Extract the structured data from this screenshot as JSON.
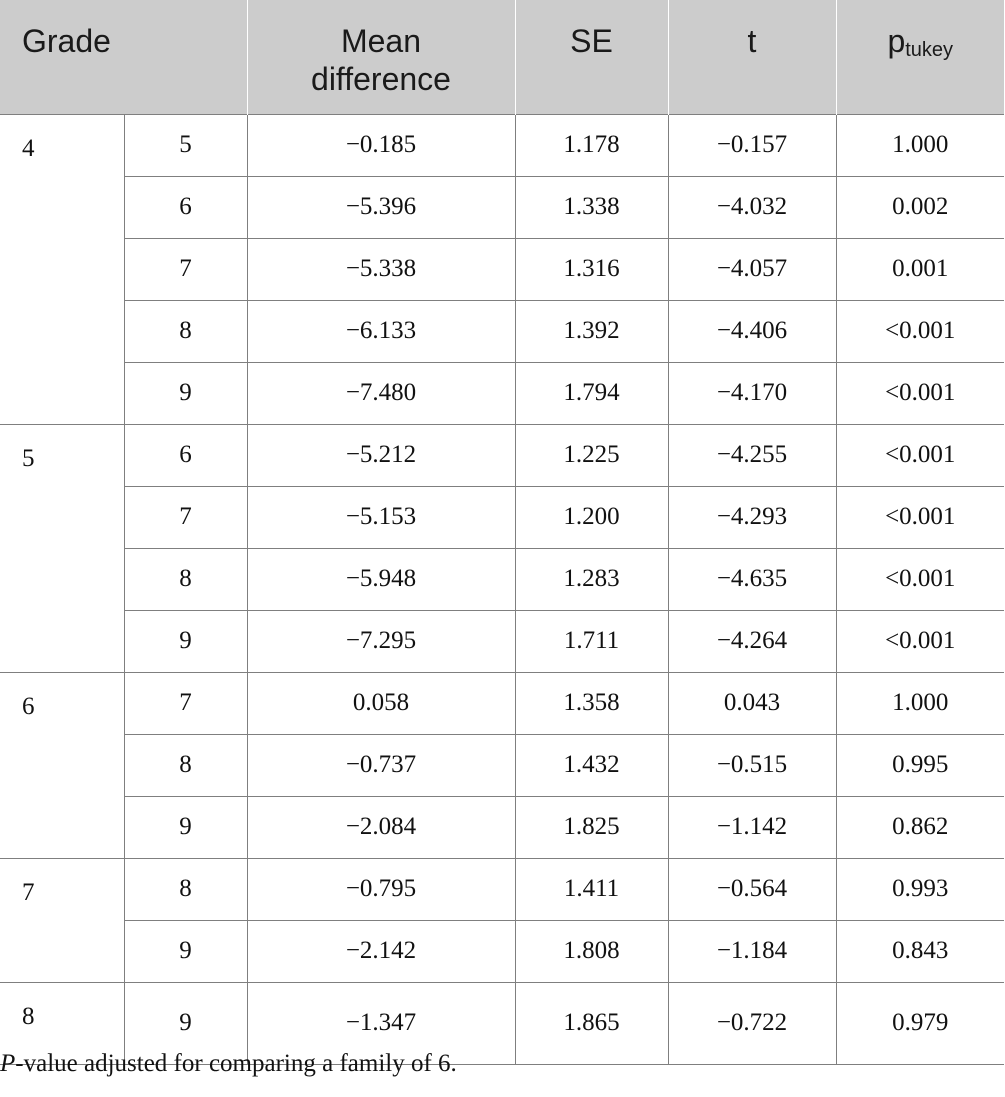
{
  "header": {
    "grade": "Grade",
    "mean_difference_line1": "Mean",
    "mean_difference_line2": "difference",
    "se": "SE",
    "t": "t",
    "p_main": "p",
    "p_sub": "tukey"
  },
  "groups": [
    {
      "grade": "4",
      "rows": [
        {
          "cmp": "5",
          "md": "−0.185",
          "se": "1.178",
          "t": "−0.157",
          "p": "1.000"
        },
        {
          "cmp": "6",
          "md": "−5.396",
          "se": "1.338",
          "t": "−4.032",
          "p": "0.002"
        },
        {
          "cmp": "7",
          "md": "−5.338",
          "se": "1.316",
          "t": "−4.057",
          "p": "0.001"
        },
        {
          "cmp": "8",
          "md": "−6.133",
          "se": "1.392",
          "t": "−4.406",
          "p": "<0.001"
        },
        {
          "cmp": "9",
          "md": "−7.480",
          "se": "1.794",
          "t": "−4.170",
          "p": "<0.001"
        }
      ]
    },
    {
      "grade": "5",
      "rows": [
        {
          "cmp": "6",
          "md": "−5.212",
          "se": "1.225",
          "t": "−4.255",
          "p": "<0.001"
        },
        {
          "cmp": "7",
          "md": "−5.153",
          "se": "1.200",
          "t": "−4.293",
          "p": "<0.001"
        },
        {
          "cmp": "8",
          "md": "−5.948",
          "se": "1.283",
          "t": "−4.635",
          "p": "<0.001"
        },
        {
          "cmp": "9",
          "md": "−7.295",
          "se": "1.711",
          "t": "−4.264",
          "p": "<0.001"
        }
      ]
    },
    {
      "grade": "6",
      "rows": [
        {
          "cmp": "7",
          "md": "0.058",
          "se": "1.358",
          "t": "0.043",
          "p": "1.000"
        },
        {
          "cmp": "8",
          "md": "−0.737",
          "se": "1.432",
          "t": "−0.515",
          "p": "0.995"
        },
        {
          "cmp": "9",
          "md": "−2.084",
          "se": "1.825",
          "t": "−1.142",
          "p": "0.862"
        }
      ]
    },
    {
      "grade": "7",
      "rows": [
        {
          "cmp": "8",
          "md": "−0.795",
          "se": "1.411",
          "t": "−0.564",
          "p": "0.993"
        },
        {
          "cmp": "9",
          "md": "−2.142",
          "se": "1.808",
          "t": "−1.184",
          "p": "0.843"
        }
      ]
    },
    {
      "grade": "8",
      "rows": [
        {
          "cmp": "9",
          "md": "−1.347",
          "se": "1.865",
          "t": "−0.722",
          "p": "0.979"
        }
      ]
    }
  ],
  "footnote": {
    "italic": "P",
    "rest": "-value adjusted for comparing a family of 6."
  }
}
